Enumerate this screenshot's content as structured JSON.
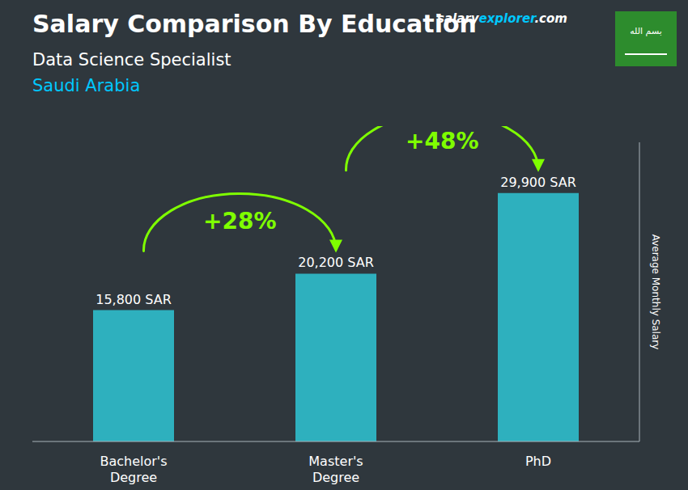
{
  "chart_data": {
    "type": "bar",
    "title": "Salary Comparison By Education",
    "subtitle": [
      {
        "text": "Data Science Specialist",
        "color": "#ffffff"
      },
      {
        "text": "Saudi Arabia",
        "color": "#00c8ff"
      }
    ],
    "ylabel": "Average Monthly Salary",
    "categories": [
      "Bachelor's\nDegree",
      "Master's\nDegree",
      "PhD"
    ],
    "values": [
      15800,
      20200,
      29900
    ],
    "value_labels": [
      "15,800 SAR",
      "20,200 SAR",
      "29,900 SAR"
    ],
    "data_labels": true,
    "color": "#2ec5d5",
    "ylim": [
      0,
      36000
    ],
    "tick_labels": "x",
    "grid": false,
    "annotations": [
      {
        "text": "+28%",
        "color": "#7fff00"
      },
      {
        "text": "+48%",
        "color": "#7fff00"
      }
    ],
    "logo": [
      {
        "text": "salary",
        "color": "#ffffff"
      },
      {
        "text": "explorer",
        "color": "#00c8ff"
      },
      {
        "text": ".com",
        "color": "#ffffff"
      }
    ],
    "flag": {
      "text": "بسم الله",
      "color": "#2d8c2d"
    }
  }
}
